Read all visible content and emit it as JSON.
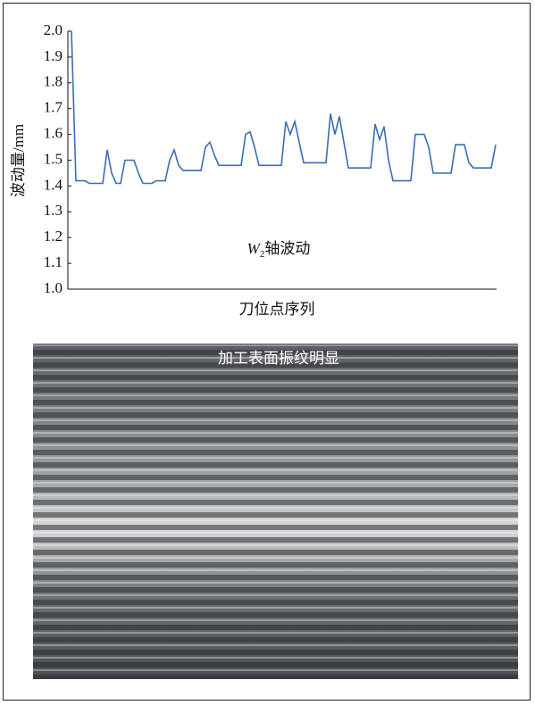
{
  "chart_data": {
    "type": "line",
    "y_label": "波动量/mm",
    "x_label": "刀位点序列",
    "annotation": {
      "symbol": "W",
      "subscript": "2",
      "text": "轴波动"
    },
    "color": "#3a6db5",
    "ylim": [
      1.0,
      2.0
    ],
    "yticks": [
      {
        "value": 1.0,
        "label": "1.0"
      },
      1.1,
      1.2,
      1.3,
      1.4,
      1.5,
      1.6,
      1.7,
      1.8,
      1.9,
      {
        "value": 2.0,
        "label": "2.0"
      }
    ],
    "values": [
      2.0,
      1.42,
      1.42,
      1.42,
      1.41,
      1.41,
      1.41,
      1.41,
      1.54,
      1.45,
      1.41,
      1.41,
      1.5,
      1.5,
      1.5,
      1.45,
      1.41,
      1.41,
      1.41,
      1.42,
      1.42,
      1.42,
      1.5,
      1.54,
      1.48,
      1.46,
      1.46,
      1.46,
      1.46,
      1.46,
      1.55,
      1.57,
      1.52,
      1.48,
      1.48,
      1.48,
      1.48,
      1.48,
      1.48,
      1.6,
      1.61,
      1.55,
      1.48,
      1.48,
      1.48,
      1.48,
      1.48,
      1.48,
      1.65,
      1.6,
      1.65,
      1.57,
      1.49,
      1.49,
      1.49,
      1.49,
      1.49,
      1.49,
      1.68,
      1.6,
      1.67,
      1.57,
      1.47,
      1.47,
      1.47,
      1.47,
      1.47,
      1.47,
      1.64,
      1.58,
      1.63,
      1.5,
      1.42,
      1.42,
      1.42,
      1.42,
      1.42,
      1.6,
      1.6,
      1.6,
      1.55,
      1.45,
      1.45,
      1.45,
      1.45,
      1.45,
      1.56,
      1.56,
      1.56,
      1.49,
      1.47,
      1.47,
      1.47,
      1.47,
      1.47,
      1.56
    ]
  },
  "image_caption": "加工表面振纹明显"
}
